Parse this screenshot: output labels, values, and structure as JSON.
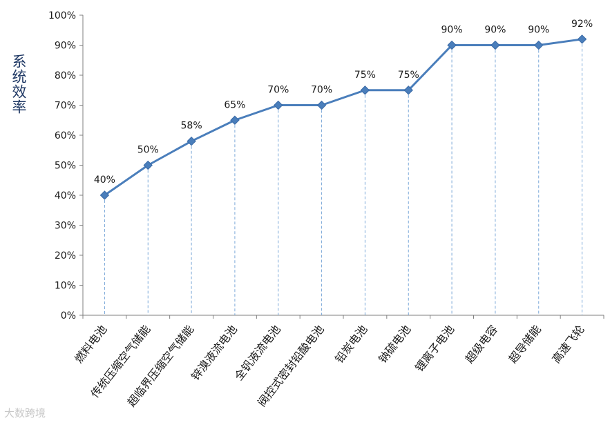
{
  "chart_data": {
    "type": "line",
    "title": "",
    "xlabel": "",
    "ylabel": "系统效率",
    "categories": [
      "燃料电池",
      "传统压缩空气储能",
      "超临界压缩空气储能",
      "锌溴液流电池",
      "全钒液流电池",
      "阀控式密封铅酸电池",
      "铅炭电池",
      "钠硫电池",
      "锂离子电池",
      "超级电容",
      "超导储能",
      "高速飞轮"
    ],
    "series": [
      {
        "values": [
          40,
          50,
          58,
          65,
          70,
          70,
          75,
          75,
          90,
          90,
          90,
          92
        ],
        "data_labels": [
          "40%",
          "50%",
          "58%",
          "65%",
          "70%",
          "70%",
          "75%",
          "75%",
          "90%",
          "90%",
          "90%",
          "92%"
        ]
      }
    ],
    "ylim": [
      0,
      100
    ],
    "yticks": [
      "0%",
      "10%",
      "20%",
      "30%",
      "40%",
      "50%",
      "60%",
      "70%",
      "80%",
      "90%",
      "100%"
    ],
    "grid": false,
    "drop_lines": true,
    "marker": "diamond",
    "colors": {
      "line": "#4a7ebb",
      "marker": "#4a7ebb",
      "drop_line": "#7aa7d8",
      "axis": "#7f7f7f",
      "text": "#1a1a1a",
      "ylabel": "#1f3864"
    }
  },
  "watermark": "大数跨境"
}
